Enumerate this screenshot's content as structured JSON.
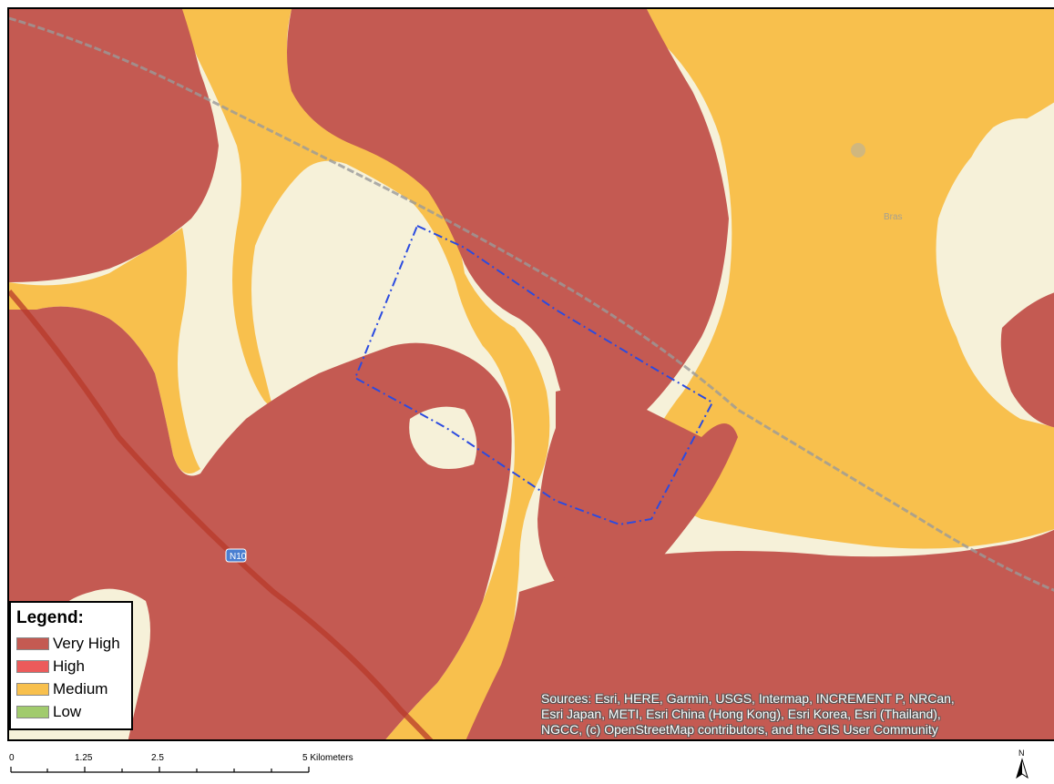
{
  "legend": {
    "title": "Legend:",
    "items": [
      {
        "label": "Very High",
        "color": "#c45a52"
      },
      {
        "label": "High",
        "color": "#ec5b5b"
      },
      {
        "label": "Medium",
        "color": "#f8c04d"
      },
      {
        "label": "Low",
        "color": "#a1cb6d"
      }
    ]
  },
  "attribution": {
    "line1": "Sources: Esri, HERE, Garmin, USGS, Intermap, INCREMENT P, NRCan,",
    "line2": "Esri Japan, METI, Esri China (Hong Kong), Esri Korea, Esri (Thailand),",
    "line3": "NGCC, (c) OpenStreetMap contributors, and the GIS User Community"
  },
  "map_labels": {
    "road_shield": "N10",
    "place": "Bras"
  },
  "scalebar": {
    "labels": [
      "0",
      "1.25",
      "2.5",
      "5 Kilometers"
    ]
  },
  "north_arrow": {
    "label": "N"
  },
  "colors": {
    "basemap": "#f6f1d9",
    "study_area_outline": "#2b4be0",
    "railway": "#8a8a8a",
    "highway": "#c0392b"
  }
}
